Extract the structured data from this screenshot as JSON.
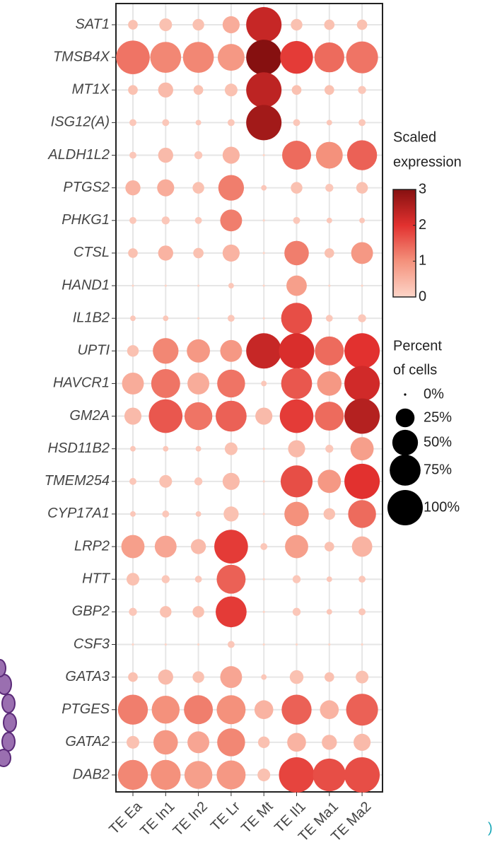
{
  "chart_data": {
    "type": "dotplot",
    "categories": [
      "TE Ea",
      "TE In1",
      "TE In2",
      "TE Lr",
      "TE Mt",
      "TE Il1",
      "TE Ma1",
      "TE Ma2"
    ],
    "genes": [
      "SAT1",
      "TMSB4X",
      "MT1X",
      "ISG12(A)",
      "ALDH1L2",
      "PTGS2",
      "PHKG1",
      "CTSL",
      "HAND1",
      "IL1B2",
      "UPTI",
      "HAVCR1",
      "GM2A",
      "HSD11B2",
      "TMEM254",
      "CYP17A1",
      "LRP2",
      "HTT",
      "GBP2",
      "CSF3",
      "GATA3",
      "PTGES",
      "GATA2",
      "DAB2"
    ],
    "percent": [
      [
        5,
        10,
        8,
        20,
        100,
        8,
        6,
        6
      ],
      [
        90,
        75,
        75,
        55,
        100,
        85,
        70,
        80
      ],
      [
        5,
        15,
        5,
        10,
        100,
        5,
        5,
        3
      ],
      [
        2,
        2,
        1,
        2,
        100,
        2,
        1,
        2
      ],
      [
        2,
        15,
        3,
        20,
        0,
        65,
        55,
        70
      ],
      [
        15,
        20,
        8,
        50,
        1,
        8,
        3,
        8
      ],
      [
        2,
        3,
        2,
        35,
        0,
        2,
        1,
        1
      ],
      [
        5,
        15,
        6,
        20,
        0,
        45,
        5,
        35
      ],
      [
        0,
        0,
        0,
        1,
        0,
        30,
        0,
        0
      ],
      [
        1,
        1,
        0,
        2,
        0,
        75,
        2,
        3
      ],
      [
        8,
        50,
        40,
        35,
        100,
        100,
        65,
        100
      ],
      [
        35,
        65,
        35,
        60,
        1,
        75,
        45,
        100
      ],
      [
        20,
        90,
        60,
        75,
        20,
        90,
        65,
        100
      ],
      [
        1,
        1,
        1,
        10,
        0,
        20,
        3,
        40
      ],
      [
        2,
        10,
        3,
        20,
        0,
        80,
        40,
        100
      ],
      [
        1,
        2,
        1,
        15,
        0,
        45,
        8,
        60
      ],
      [
        40,
        35,
        15,
        90,
        2,
        40,
        5,
        30
      ],
      [
        10,
        3,
        2,
        65,
        0,
        3,
        1,
        2
      ],
      [
        3,
        8,
        8,
        75,
        0,
        3,
        1,
        2
      ],
      [
        0,
        0,
        0,
        2,
        0,
        0,
        0,
        0
      ],
      [
        5,
        15,
        8,
        35,
        1,
        12,
        5,
        10
      ],
      [
        70,
        60,
        65,
        65,
        25,
        70,
        25,
        80
      ],
      [
        10,
        45,
        35,
        60,
        8,
        25,
        15,
        20
      ],
      [
        70,
        70,
        60,
        65,
        10,
        100,
        85,
        100
      ]
    ],
    "expression": [
      [
        0.3,
        0.3,
        0.3,
        0.6,
        2.3,
        0.3,
        0.3,
        0.3
      ],
      [
        1.3,
        1.1,
        1.1,
        0.9,
        3.0,
        1.9,
        1.4,
        1.3
      ],
      [
        0.3,
        0.4,
        0.3,
        0.3,
        2.4,
        0.3,
        0.3,
        0.2
      ],
      [
        0.2,
        0.2,
        0.2,
        0.2,
        2.7,
        0.2,
        0.2,
        0.2
      ],
      [
        0.2,
        0.4,
        0.2,
        0.5,
        0,
        1.4,
        1.0,
        1.5
      ],
      [
        0.5,
        0.6,
        0.3,
        1.2,
        0.2,
        0.3,
        0.2,
        0.3
      ],
      [
        0.2,
        0.2,
        0.2,
        1.2,
        0,
        0.2,
        0.2,
        0.2
      ],
      [
        0.3,
        0.5,
        0.3,
        0.5,
        0,
        1.2,
        0.3,
        0.9
      ],
      [
        0,
        0,
        0,
        0.2,
        0,
        0.8,
        0,
        0
      ],
      [
        0.2,
        0.2,
        0,
        0.2,
        0,
        1.7,
        0.2,
        0.2
      ],
      [
        0.3,
        1.1,
        0.9,
        0.9,
        2.3,
        2.1,
        1.4,
        2.0
      ],
      [
        0.6,
        1.3,
        0.6,
        1.3,
        0.2,
        1.6,
        0.9,
        2.2
      ],
      [
        0.4,
        1.6,
        1.3,
        1.5,
        0.4,
        1.9,
        1.4,
        2.5
      ],
      [
        0.2,
        0.2,
        0.2,
        0.3,
        0,
        0.4,
        0.2,
        0.8
      ],
      [
        0.2,
        0.3,
        0.2,
        0.4,
        0,
        1.7,
        0.9,
        2.0
      ],
      [
        0.2,
        0.2,
        0.2,
        0.3,
        0,
        1.0,
        0.3,
        1.4
      ],
      [
        0.8,
        0.7,
        0.4,
        1.9,
        0.2,
        0.8,
        0.3,
        0.5
      ],
      [
        0.3,
        0.2,
        0.2,
        1.5,
        0,
        0.2,
        0.2,
        0.2
      ],
      [
        0.2,
        0.3,
        0.3,
        1.9,
        0,
        0.2,
        0.2,
        0.2
      ],
      [
        0,
        0,
        0,
        0.2,
        0,
        0,
        0,
        0
      ],
      [
        0.3,
        0.4,
        0.3,
        0.7,
        0.2,
        0.3,
        0.3,
        0.3
      ],
      [
        1.2,
        1.0,
        1.2,
        1.0,
        0.5,
        1.5,
        0.5,
        1.5
      ],
      [
        0.3,
        0.9,
        0.7,
        1.1,
        0.3,
        0.5,
        0.4,
        0.4
      ],
      [
        1.1,
        1.0,
        0.8,
        0.9,
        0.3,
        1.8,
        1.7,
        1.7
      ]
    ],
    "color_title": [
      "Scaled",
      "expression"
    ],
    "colorlim": [
      0,
      3
    ],
    "color_ticks": [
      0,
      1,
      2,
      3
    ],
    "color_scale": [
      "#fdd5c8",
      "#f4917c",
      "#e2312f",
      "#861010"
    ],
    "size_title": [
      "Percent",
      "of cells"
    ],
    "sizelim": [
      0,
      100
    ],
    "size_ticks": [
      {
        "value": 0,
        "label": "0%"
      },
      {
        "value": 25,
        "label": "25%"
      },
      {
        "value": 50,
        "label": "50%"
      },
      {
        "value": 75,
        "label": "75%"
      },
      {
        "value": 100,
        "label": "100%"
      }
    ]
  }
}
